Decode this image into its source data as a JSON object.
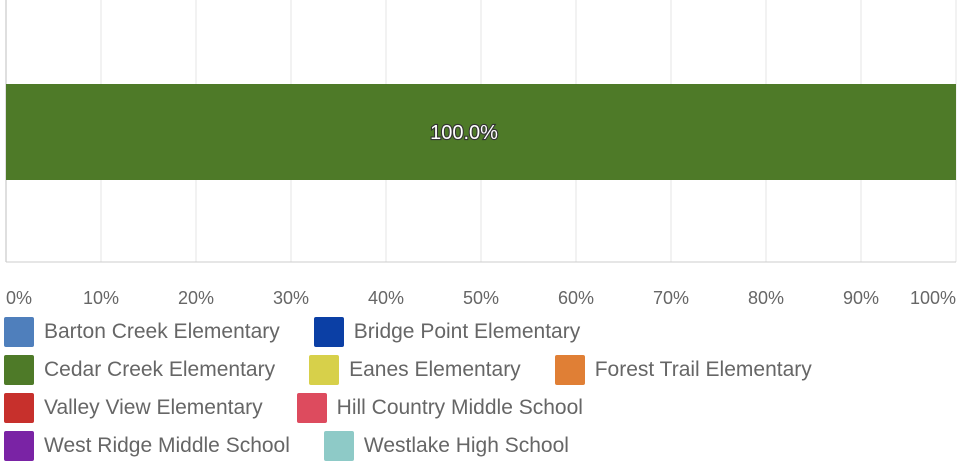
{
  "chart_data": {
    "type": "bar",
    "orientation": "horizontal",
    "stacked": true,
    "categories": [
      ""
    ],
    "series": [
      {
        "name": "Barton Creek Elementary",
        "color": "#4f7fbc",
        "values": [
          0
        ]
      },
      {
        "name": "Bridge Point Elementary",
        "color": "#0b3fa5",
        "values": [
          0
        ]
      },
      {
        "name": "Cedar Creek Elementary",
        "color": "#4e7a28",
        "values": [
          100.0
        ],
        "label": "100.0%"
      },
      {
        "name": "Eanes Elementary",
        "color": "#d7d04a",
        "values": [
          0
        ]
      },
      {
        "name": "Forest Trail Elementary",
        "color": "#e07f35",
        "values": [
          0
        ]
      },
      {
        "name": "Valley View Elementary",
        "color": "#c7302c",
        "values": [
          0
        ]
      },
      {
        "name": "Hill Country Middle School",
        "color": "#dd4b5e",
        "values": [
          0
        ]
      },
      {
        "name": "West Ridge Middle School",
        "color": "#7a23a5",
        "values": [
          0
        ]
      },
      {
        "name": "Westlake High School",
        "color": "#8ecac7",
        "values": [
          0
        ]
      }
    ],
    "xticks": [
      "0%",
      "10%",
      "20%",
      "30%",
      "40%",
      "50%",
      "60%",
      "70%",
      "80%",
      "90%",
      "100%"
    ],
    "xlim": [
      0,
      100
    ],
    "grid": true,
    "legend_position": "bottom"
  },
  "legend_rows": [
    [
      0,
      1
    ],
    [
      2,
      3,
      4
    ],
    [
      5,
      6
    ],
    [
      7,
      8
    ]
  ]
}
